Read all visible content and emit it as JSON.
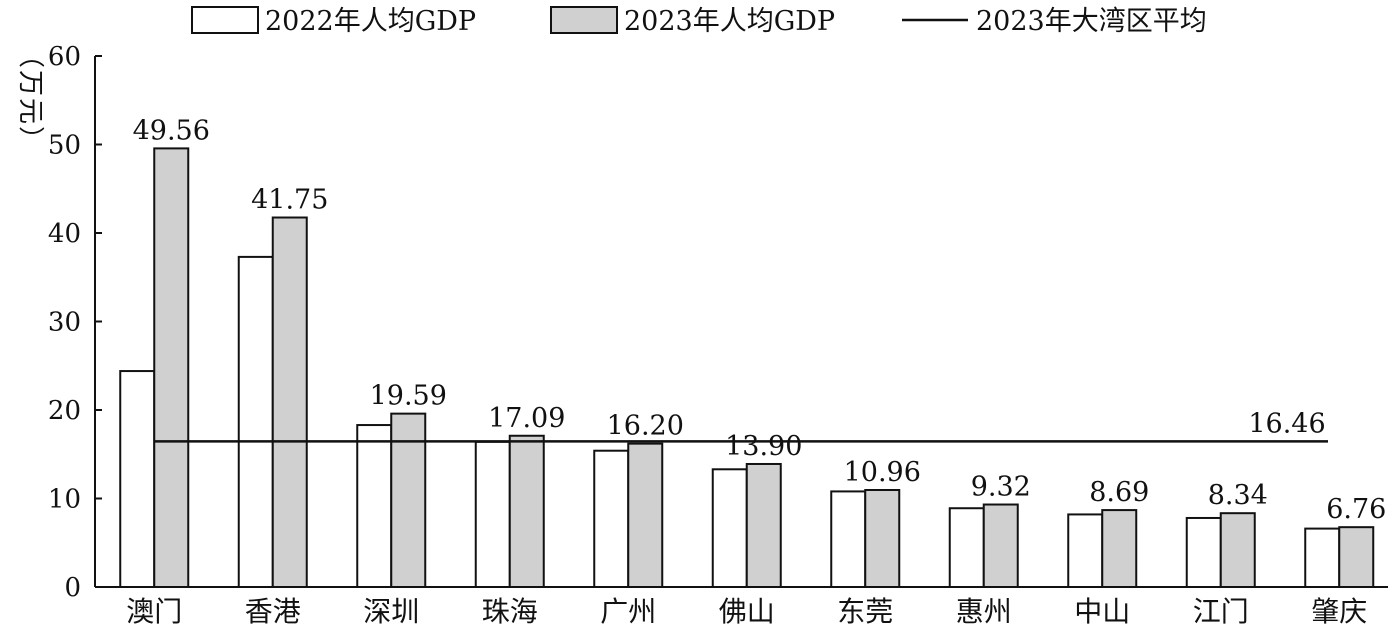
{
  "chart_data": {
    "type": "bar",
    "ylabel": "（万元）",
    "ylim": [
      0,
      60
    ],
    "yticks": [
      0,
      10,
      20,
      30,
      40,
      50,
      60
    ],
    "grid": false,
    "legend_position": "top",
    "categories": [
      "澳门",
      "香港",
      "深圳",
      "珠海",
      "广州",
      "佛山",
      "东莞",
      "惠州",
      "中山",
      "江门",
      "肇庆"
    ],
    "series": [
      {
        "name": "2022年人均GDP",
        "color": "#ffffff",
        "values": [
          24.4,
          37.3,
          18.3,
          16.4,
          15.4,
          13.3,
          10.8,
          8.9,
          8.2,
          7.8,
          6.6
        ]
      },
      {
        "name": "2023年人均GDP",
        "color": "#d0d0d0",
        "values": [
          49.56,
          41.75,
          19.59,
          17.09,
          16.2,
          13.9,
          10.96,
          9.32,
          8.69,
          8.34,
          6.76
        ]
      }
    ],
    "data_labels": [
      "49.56",
      "41.75",
      "19.59",
      "17.09",
      "16.20",
      "13.90",
      "10.96",
      "9.32",
      "8.69",
      "8.34",
      "6.76"
    ],
    "average_line": {
      "name": "2023年大湾区平均",
      "value": 16.46,
      "label": "16.46",
      "color": "#111111"
    }
  }
}
